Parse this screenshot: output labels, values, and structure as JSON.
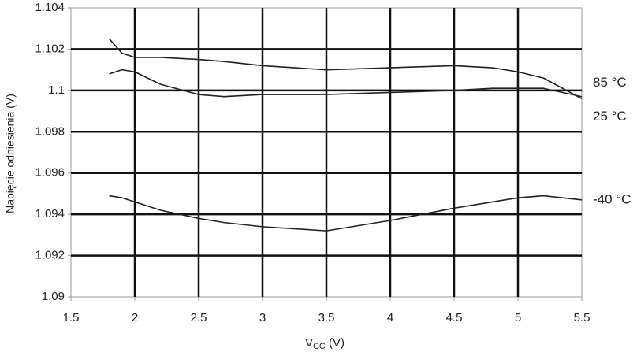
{
  "chart_data": {
    "type": "line",
    "y_label": "Napięcie odniesienia (V)",
    "x_label": [
      "V",
      "CC",
      " (V)"
    ],
    "x": [
      1.8,
      1.9,
      2.0,
      2.2,
      2.5,
      2.7,
      3.0,
      3.5,
      4.0,
      4.5,
      4.8,
      5.0,
      5.2,
      5.5
    ],
    "series": [
      {
        "name": "85 °C",
        "color": "#222222",
        "values": [
          1.1025,
          1.1018,
          1.1016,
          1.1016,
          1.1015,
          1.1014,
          1.1012,
          1.101,
          1.1011,
          1.1012,
          1.1011,
          1.1009,
          1.1006,
          1.0996
        ]
      },
      {
        "name": "25 °C",
        "color": "#222222",
        "values": [
          1.1008,
          1.101,
          1.1009,
          1.1003,
          1.0998,
          1.0997,
          1.0998,
          1.0998,
          1.0999,
          1.1,
          1.1001,
          1.1001,
          1.1001,
          1.0997
        ]
      },
      {
        "name": "-40 °C",
        "color": "#222222",
        "values": [
          1.0949,
          1.0948,
          1.0946,
          1.0942,
          1.0938,
          1.0936,
          1.0934,
          1.0932,
          1.0937,
          1.0943,
          1.0946,
          1.0948,
          1.0949,
          1.0947
        ]
      }
    ],
    "xlim": [
      1.5,
      5.5
    ],
    "xticks": [
      1.5,
      2,
      2.5,
      3,
      3.5,
      4,
      4.5,
      5,
      5.5
    ],
    "ylim": [
      1.09,
      1.104
    ],
    "yticks": [
      1.09,
      1.092,
      1.094,
      1.096,
      1.098,
      1.1,
      1.102,
      1.104
    ],
    "grid": true
  }
}
